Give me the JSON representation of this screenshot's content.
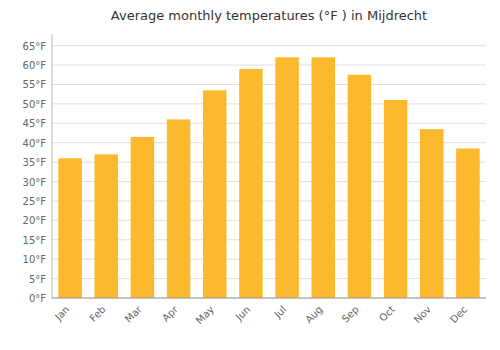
{
  "chart_data": {
    "type": "bar",
    "title": "Average monthly temperatures (°F ) in Mijdrecht",
    "categories": [
      "Jan",
      "Feb",
      "Mar",
      "Apr",
      "May",
      "Jun",
      "Jul",
      "Aug",
      "Sep",
      "Oct",
      "Nov",
      "Dec"
    ],
    "values": [
      36,
      37,
      41.5,
      46,
      53.5,
      59,
      62,
      62,
      57.5,
      51,
      43.5,
      38.5
    ],
    "color": "#FDB92E",
    "ylim": [
      0,
      68
    ],
    "yticks": [
      {
        "value": 0,
        "label": "0°F"
      },
      {
        "value": 5,
        "label": "5°F"
      },
      {
        "value": 10,
        "label": "10°F"
      },
      {
        "value": 15,
        "label": "15°F"
      },
      {
        "value": 20,
        "label": "20°F"
      },
      {
        "value": 25,
        "label": "25°F"
      },
      {
        "value": 30,
        "label": "30°F"
      },
      {
        "value": 35,
        "label": "35°F"
      },
      {
        "value": 40,
        "label": "40°F"
      },
      {
        "value": 45,
        "label": "45°F"
      },
      {
        "value": 50,
        "label": "50°F"
      },
      {
        "value": 55,
        "label": "55°F"
      },
      {
        "value": 60,
        "label": "60°F"
      },
      {
        "value": 65,
        "label": "65°F"
      }
    ],
    "grid": true
  }
}
